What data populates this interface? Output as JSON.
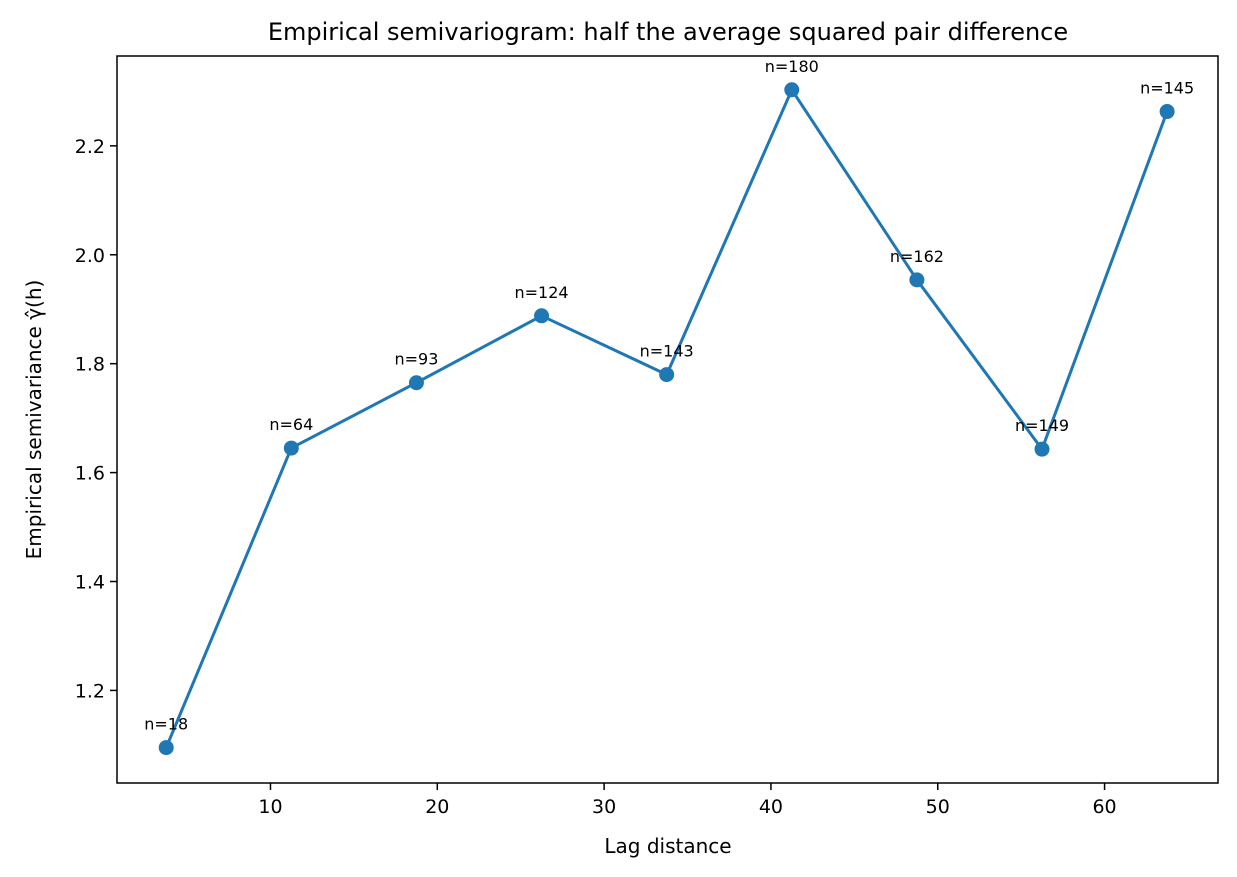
{
  "chart_data": {
    "type": "line",
    "title": "Empirical semivariogram: half the average squared pair difference",
    "xlabel": "Lag distance",
    "ylabel": "Empirical semivariance γ̂(h)",
    "xlim": [
      0.8,
      66.8
    ],
    "ylim": [
      1.03,
      2.365
    ],
    "xticks": [
      10,
      20,
      30,
      40,
      50,
      60
    ],
    "yticks": [
      1.2,
      1.4,
      1.6,
      1.8,
      2.0,
      2.2
    ],
    "grid": false,
    "legend": "none",
    "color": "#1f77b4",
    "series": [
      {
        "x": [
          3.75,
          11.25,
          18.75,
          26.25,
          33.75,
          41.25,
          48.75,
          56.25,
          63.75
        ],
        "y": [
          1.095,
          1.645,
          1.765,
          1.888,
          1.78,
          2.303,
          1.954,
          1.643,
          2.263
        ],
        "labels": [
          "n=18",
          "n=64",
          "n=93",
          "n=124",
          "n=143",
          "n=180",
          "n=162",
          "n=149",
          "n=145"
        ]
      }
    ]
  }
}
